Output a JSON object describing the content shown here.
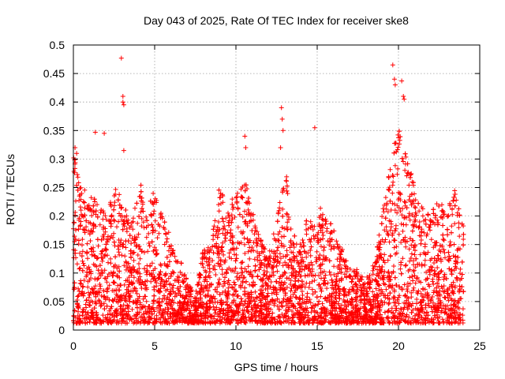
{
  "chart_data": {
    "type": "scatter",
    "title": "Day 043 of 2025, Rate Of TEC Index for receiver ske8",
    "xlabel": "GPS time / hours",
    "ylabel": "ROTI / TECUs",
    "xlim": [
      0,
      25
    ],
    "ylim": [
      0,
      0.5
    ],
    "xticks": [
      0,
      5,
      10,
      15,
      20,
      25
    ],
    "yticks": [
      0,
      0.05,
      0.1,
      0.15,
      0.2,
      0.25,
      0.3,
      0.35,
      0.4,
      0.45,
      0.5
    ],
    "xtick_labels": [
      "0",
      "5",
      "10",
      "15",
      "20",
      "25"
    ],
    "ytick_labels": [
      "0",
      "0.05",
      "0.1",
      "0.15",
      "0.2",
      "0.25",
      "0.3",
      "0.35",
      "0.4",
      "0.45",
      "0.5"
    ],
    "grid": true,
    "marker": "+",
    "marker_color": "#ff0000",
    "data_coverage_hours": [
      0,
      24
    ],
    "envelope": {
      "description": "approximate upper envelope of dense point cloud (hour, ROTI)",
      "x": [
        0,
        0.5,
        1,
        1.5,
        2,
        2.5,
        3,
        3.5,
        4,
        4.5,
        5,
        5.5,
        6,
        6.5,
        7,
        7.5,
        8,
        8.5,
        9,
        9.5,
        10,
        10.5,
        11,
        11.5,
        12,
        12.5,
        13,
        13.5,
        14,
        14.5,
        15,
        15.5,
        16,
        16.5,
        17,
        17.5,
        18,
        18.5,
        19,
        19.5,
        20,
        20.5,
        21,
        21.5,
        22,
        22.5,
        23,
        23.5,
        24
      ],
      "y": [
        0.3,
        0.25,
        0.22,
        0.24,
        0.2,
        0.27,
        0.22,
        0.18,
        0.26,
        0.23,
        0.24,
        0.2,
        0.15,
        0.12,
        0.09,
        0.06,
        0.14,
        0.16,
        0.26,
        0.2,
        0.24,
        0.28,
        0.2,
        0.16,
        0.13,
        0.18,
        0.3,
        0.16,
        0.15,
        0.2,
        0.23,
        0.2,
        0.17,
        0.14,
        0.11,
        0.1,
        0.09,
        0.12,
        0.2,
        0.3,
        0.36,
        0.3,
        0.25,
        0.22,
        0.2,
        0.22,
        0.2,
        0.24,
        0.2
      ]
    },
    "outliers": {
      "x": [
        2.95,
        3.05,
        3.05,
        3.1,
        19.65,
        19.75,
        19.8,
        20.2,
        20.3,
        20.35,
        12.8,
        12.85,
        12.9,
        14.85,
        1.35,
        1.9,
        3.1,
        10.55,
        10.6,
        12.75,
        0.1,
        0.2
      ],
      "y": [
        0.477,
        0.41,
        0.4,
        0.395,
        0.465,
        0.44,
        0.43,
        0.437,
        0.41,
        0.405,
        0.39,
        0.37,
        0.35,
        0.355,
        0.347,
        0.345,
        0.315,
        0.34,
        0.32,
        0.32,
        0.32,
        0.31
      ]
    }
  }
}
